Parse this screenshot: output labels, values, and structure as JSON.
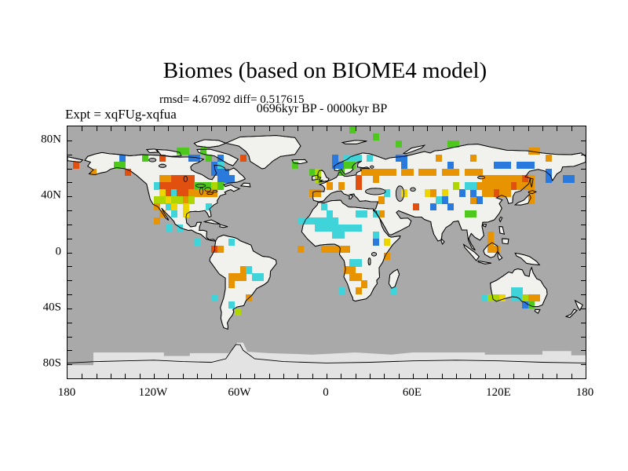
{
  "window": {
    "background": "#ffffff"
  },
  "header": {
    "title": "Biomes (based on BIOME4 model)",
    "stats": "rmsd= 4.67092 diff= 0.517615",
    "period": "0696kyr BP - 0000kyr BP",
    "experiment": "Expt = xqFUg-xqfua"
  },
  "chart_data": {
    "type": "heatmap",
    "subtype": "world-map-grid-difference-plot",
    "title": "Biomes (based on BIOME4 model)",
    "annotations": [
      "rmsd= 4.67092 diff= 0.517615",
      "0696kyr BP - 0000kyr BP",
      "Expt = xqFUg-xqfua"
    ],
    "x_axis": {
      "labels": [
        "180",
        "120W",
        "60W",
        "0",
        "60E",
        "120E",
        "180"
      ],
      "range_deg": [
        -180,
        180
      ],
      "tick_step_deg": 10,
      "label_step_deg": 60
    },
    "y_axis": {
      "labels": [
        "80N",
        "40N",
        "0",
        "40S",
        "80S"
      ],
      "range_deg": [
        -90,
        90
      ],
      "tick_step_deg": 10,
      "label_step_deg": 40
    },
    "legend": "none",
    "colors": {
      "ocean": "#a9a9a9",
      "land": "#f1f1ee",
      "ice": "#e3e3e3",
      "coast": "#000000",
      "frame": "#000000"
    },
    "palette": {
      "R": "#e2500f",
      "O": "#e79400",
      "Y": "#ecd500",
      "G": "#aed600",
      "E": "#4fc81e",
      "C": "#3fd3da",
      "B": "#2a79dd"
    },
    "grid": {
      "cols": 90,
      "rows": 36
    },
    "cells": [
      [
        1,
        5,
        "R"
      ],
      [
        4,
        6,
        "O"
      ],
      [
        8,
        5,
        "E"
      ],
      [
        9,
        5,
        "E"
      ],
      [
        9,
        4,
        "B"
      ],
      [
        10,
        6,
        "R"
      ],
      [
        13,
        4,
        "E"
      ],
      [
        16,
        4,
        "R"
      ],
      [
        19,
        3,
        "E"
      ],
      [
        20,
        3,
        "E"
      ],
      [
        23,
        3,
        "E"
      ],
      [
        24,
        4,
        "E"
      ],
      [
        21,
        4,
        "B"
      ],
      [
        22,
        4,
        "B"
      ],
      [
        26,
        4,
        "B"
      ],
      [
        16,
        7,
        "O"
      ],
      [
        17,
        7,
        "O"
      ],
      [
        18,
        7,
        "R"
      ],
      [
        19,
        7,
        "R"
      ],
      [
        20,
        7,
        "R"
      ],
      [
        21,
        7,
        "R"
      ],
      [
        15,
        8,
        "C"
      ],
      [
        16,
        8,
        "R"
      ],
      [
        17,
        8,
        "R"
      ],
      [
        18,
        8,
        "R"
      ],
      [
        19,
        8,
        "R"
      ],
      [
        20,
        8,
        "R"
      ],
      [
        21,
        8,
        "R"
      ],
      [
        22,
        8,
        "E"
      ],
      [
        23,
        8,
        "E"
      ],
      [
        24,
        8,
        "E"
      ],
      [
        25,
        8,
        "G"
      ],
      [
        16,
        9,
        "Y"
      ],
      [
        17,
        9,
        "R"
      ],
      [
        18,
        9,
        "C"
      ],
      [
        19,
        9,
        "R"
      ],
      [
        20,
        9,
        "R"
      ],
      [
        21,
        9,
        "O"
      ],
      [
        22,
        9,
        "O"
      ],
      [
        23,
        9,
        "O"
      ],
      [
        24,
        9,
        "O"
      ],
      [
        25,
        9,
        "O"
      ],
      [
        15,
        10,
        "G"
      ],
      [
        16,
        10,
        "G"
      ],
      [
        17,
        10,
        "Y"
      ],
      [
        18,
        10,
        "G"
      ],
      [
        19,
        10,
        "G"
      ],
      [
        20,
        10,
        "O"
      ],
      [
        21,
        10,
        "G"
      ],
      [
        15,
        11,
        "O"
      ],
      [
        17,
        11,
        "C"
      ],
      [
        18,
        11,
        "Y"
      ],
      [
        20,
        11,
        "Y"
      ],
      [
        24,
        11,
        "C"
      ],
      [
        16,
        12,
        "O"
      ],
      [
        18,
        12,
        "C"
      ],
      [
        20,
        12,
        "Y"
      ],
      [
        15,
        13,
        "O"
      ],
      [
        17,
        14,
        "C"
      ],
      [
        19,
        14,
        "C"
      ],
      [
        25,
        5,
        "B"
      ],
      [
        26,
        5,
        "C"
      ],
      [
        25,
        6,
        "B"
      ],
      [
        26,
        6,
        "B"
      ],
      [
        27,
        6,
        "B"
      ],
      [
        26,
        7,
        "B"
      ],
      [
        27,
        7,
        "B"
      ],
      [
        28,
        7,
        "B"
      ],
      [
        26,
        8,
        "E"
      ],
      [
        30,
        4,
        "R"
      ],
      [
        39,
        5,
        "E"
      ],
      [
        49,
        0,
        "E"
      ],
      [
        53,
        1,
        "E"
      ],
      [
        22,
        16,
        "C"
      ],
      [
        25,
        17,
        "R"
      ],
      [
        26,
        17,
        "O"
      ],
      [
        28,
        16,
        "C"
      ],
      [
        30,
        20,
        "O"
      ],
      [
        31,
        20,
        "C"
      ],
      [
        28,
        21,
        "O"
      ],
      [
        29,
        21,
        "O"
      ],
      [
        30,
        21,
        "O"
      ],
      [
        32,
        21,
        "C"
      ],
      [
        33,
        21,
        "C"
      ],
      [
        28,
        22,
        "O"
      ],
      [
        25,
        24,
        "C"
      ],
      [
        31,
        24,
        "O"
      ],
      [
        28,
        25,
        "C"
      ],
      [
        29,
        26,
        "G"
      ],
      [
        42,
        6,
        "E"
      ],
      [
        43,
        6,
        "G"
      ],
      [
        43,
        7,
        "G"
      ],
      [
        46,
        4,
        "B"
      ],
      [
        46,
        5,
        "B"
      ],
      [
        47,
        5,
        "B"
      ],
      [
        48,
        4,
        "C"
      ],
      [
        49,
        4,
        "C"
      ],
      [
        50,
        4,
        "C"
      ],
      [
        52,
        4,
        "C"
      ],
      [
        48,
        5,
        "E"
      ],
      [
        49,
        5,
        "E"
      ],
      [
        47,
        6,
        "E"
      ],
      [
        45,
        8,
        "O"
      ],
      [
        47,
        8,
        "O"
      ],
      [
        50,
        7,
        "R"
      ],
      [
        50,
        8,
        "R"
      ],
      [
        42,
        9,
        "O"
      ],
      [
        43,
        9,
        "O"
      ],
      [
        44,
        11,
        "C"
      ],
      [
        45,
        12,
        "C"
      ],
      [
        50,
        12,
        "C"
      ],
      [
        51,
        12,
        "C"
      ],
      [
        51,
        6,
        "O"
      ],
      [
        52,
        6,
        "O"
      ],
      [
        53,
        6,
        "O"
      ],
      [
        54,
        6,
        "O"
      ],
      [
        55,
        6,
        "O"
      ],
      [
        56,
        6,
        "O"
      ],
      [
        58,
        6,
        "O"
      ],
      [
        59,
        6,
        "O"
      ],
      [
        61,
        6,
        "O"
      ],
      [
        62,
        6,
        "O"
      ],
      [
        63,
        6,
        "O"
      ],
      [
        65,
        6,
        "O"
      ],
      [
        66,
        6,
        "O"
      ],
      [
        67,
        6,
        "O"
      ],
      [
        69,
        6,
        "O"
      ],
      [
        70,
        6,
        "O"
      ],
      [
        71,
        6,
        "O"
      ],
      [
        53,
        7,
        "O"
      ],
      [
        57,
        2,
        "E"
      ],
      [
        66,
        2,
        "E"
      ],
      [
        67,
        2,
        "E"
      ],
      [
        57,
        4,
        "B"
      ],
      [
        58,
        4,
        "B"
      ],
      [
        58,
        5,
        "B"
      ],
      [
        64,
        4,
        "O"
      ],
      [
        70,
        4,
        "O"
      ],
      [
        66,
        5,
        "B"
      ],
      [
        74,
        5,
        "B"
      ],
      [
        75,
        5,
        "B"
      ],
      [
        76,
        5,
        "B"
      ],
      [
        80,
        3,
        "O"
      ],
      [
        81,
        3,
        "O"
      ],
      [
        83,
        4,
        "O"
      ],
      [
        78,
        5,
        "B"
      ],
      [
        79,
        5,
        "B"
      ],
      [
        80,
        5,
        "B"
      ],
      [
        83,
        6,
        "B"
      ],
      [
        83,
        7,
        "B"
      ],
      [
        86,
        7,
        "B"
      ],
      [
        87,
        7,
        "B"
      ],
      [
        80,
        9,
        "O"
      ],
      [
        80,
        10,
        "O"
      ],
      [
        72,
        7,
        "O"
      ],
      [
        73,
        7,
        "O"
      ],
      [
        74,
        7,
        "O"
      ],
      [
        75,
        7,
        "O"
      ],
      [
        76,
        7,
        "O"
      ],
      [
        77,
        7,
        "O"
      ],
      [
        78,
        7,
        "O"
      ],
      [
        79,
        7,
        "R"
      ],
      [
        80,
        7,
        "O"
      ],
      [
        71,
        8,
        "O"
      ],
      [
        72,
        8,
        "O"
      ],
      [
        73,
        8,
        "O"
      ],
      [
        74,
        8,
        "O"
      ],
      [
        75,
        8,
        "O"
      ],
      [
        76,
        8,
        "O"
      ],
      [
        77,
        8,
        "R"
      ],
      [
        78,
        8,
        "O"
      ],
      [
        79,
        8,
        "O"
      ],
      [
        80,
        8,
        "O"
      ],
      [
        72,
        9,
        "O"
      ],
      [
        73,
        9,
        "O"
      ],
      [
        74,
        9,
        "R"
      ],
      [
        75,
        9,
        "O"
      ],
      [
        76,
        9,
        "O"
      ],
      [
        70,
        10,
        "O"
      ],
      [
        71,
        10,
        "O"
      ],
      [
        62,
        9,
        "Y"
      ],
      [
        65,
        9,
        "Y"
      ],
      [
        63,
        9,
        "O"
      ],
      [
        58,
        9,
        "Y"
      ],
      [
        55,
        9,
        "C"
      ],
      [
        60,
        11,
        "R"
      ],
      [
        68,
        9,
        "B"
      ],
      [
        70,
        9,
        "B"
      ],
      [
        71,
        10,
        "B"
      ],
      [
        66,
        11,
        "B"
      ],
      [
        63,
        11,
        "B"
      ],
      [
        70,
        8,
        "C"
      ],
      [
        69,
        8,
        "C"
      ],
      [
        67,
        8,
        "G"
      ],
      [
        69,
        12,
        "E"
      ],
      [
        70,
        12,
        "E"
      ],
      [
        64,
        10,
        "C"
      ],
      [
        65,
        10,
        "B"
      ],
      [
        54,
        10,
        "O"
      ],
      [
        54,
        12,
        "O"
      ],
      [
        53,
        12,
        "C"
      ],
      [
        40,
        13,
        "C"
      ],
      [
        41,
        13,
        "C"
      ],
      [
        42,
        13,
        "C"
      ],
      [
        43,
        13,
        "C"
      ],
      [
        44,
        13,
        "C"
      ],
      [
        45,
        13,
        "C"
      ],
      [
        46,
        13,
        "C"
      ],
      [
        43,
        14,
        "C"
      ],
      [
        44,
        14,
        "C"
      ],
      [
        45,
        14,
        "C"
      ],
      [
        46,
        14,
        "C"
      ],
      [
        47,
        14,
        "C"
      ],
      [
        48,
        14,
        "C"
      ],
      [
        49,
        14,
        "C"
      ],
      [
        50,
        14,
        "C"
      ],
      [
        46,
        15,
        "C"
      ],
      [
        47,
        15,
        "C"
      ],
      [
        53,
        15,
        "C"
      ],
      [
        40,
        17,
        "O"
      ],
      [
        44,
        17,
        "O"
      ],
      [
        45,
        17,
        "O"
      ],
      [
        46,
        17,
        "O"
      ],
      [
        47,
        17,
        "O"
      ],
      [
        48,
        17,
        "O"
      ],
      [
        55,
        16,
        "Y"
      ],
      [
        53,
        16,
        "B"
      ],
      [
        55,
        18,
        "O"
      ],
      [
        49,
        19,
        "C"
      ],
      [
        50,
        19,
        "C"
      ],
      [
        48,
        20,
        "O"
      ],
      [
        49,
        20,
        "O"
      ],
      [
        49,
        21,
        "O"
      ],
      [
        50,
        21,
        "O"
      ],
      [
        51,
        22,
        "O"
      ],
      [
        47,
        23,
        "C"
      ],
      [
        50,
        23,
        "O"
      ],
      [
        56,
        23,
        "C"
      ],
      [
        73,
        15,
        "O"
      ],
      [
        73,
        16,
        "O"
      ],
      [
        73,
        17,
        "O"
      ],
      [
        74,
        17,
        "O"
      ],
      [
        72,
        24,
        "C"
      ],
      [
        73,
        24,
        "G"
      ],
      [
        74,
        24,
        "G"
      ],
      [
        75,
        24,
        "Y"
      ],
      [
        77,
        23,
        "C"
      ],
      [
        78,
        23,
        "C"
      ],
      [
        77,
        24,
        "C"
      ],
      [
        78,
        24,
        "C"
      ],
      [
        79,
        24,
        "G"
      ],
      [
        80,
        24,
        "O"
      ],
      [
        81,
        24,
        "O"
      ],
      [
        79,
        25,
        "B"
      ],
      [
        80,
        25,
        "E"
      ]
    ]
  }
}
